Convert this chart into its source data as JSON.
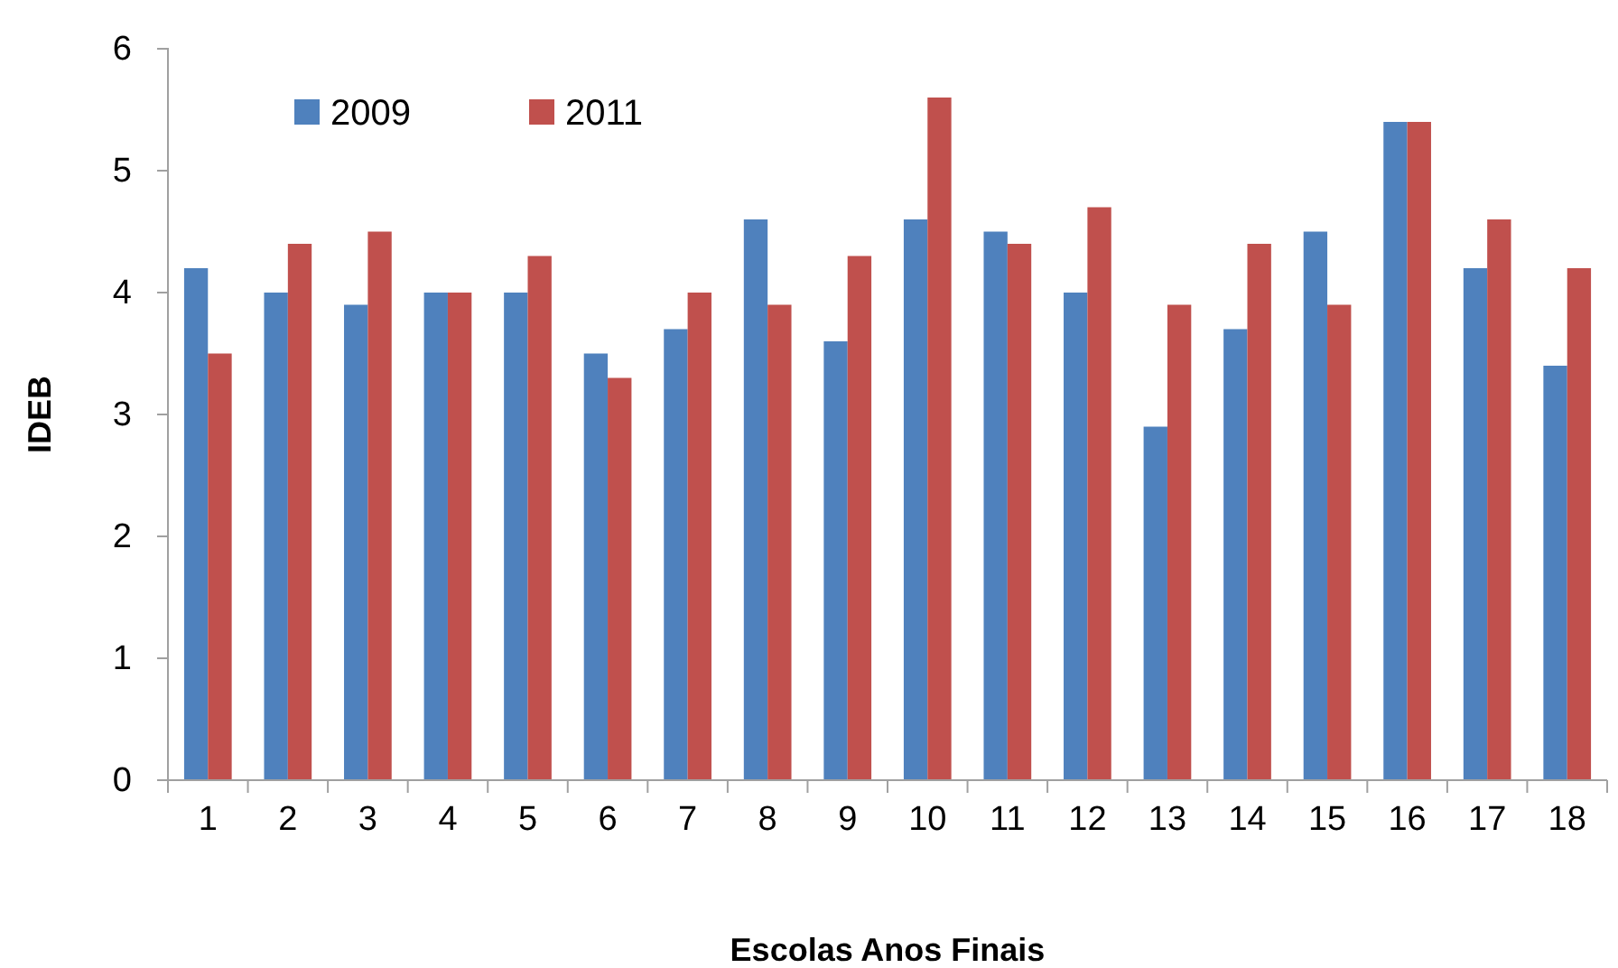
{
  "chart_data": {
    "type": "bar",
    "xlabel": "Escolas Anos Finais",
    "ylabel": "IDEB",
    "categories": [
      "1",
      "2",
      "3",
      "4",
      "5",
      "6",
      "7",
      "8",
      "9",
      "10",
      "11",
      "12",
      "13",
      "14",
      "15",
      "16",
      "17",
      "18"
    ],
    "series": [
      {
        "name": "2009",
        "color": "#4f81bd",
        "values": [
          4.2,
          4.0,
          3.9,
          4.0,
          4.0,
          3.5,
          3.7,
          4.6,
          3.6,
          4.6,
          4.5,
          4.0,
          2.9,
          3.7,
          4.5,
          5.4,
          4.2,
          3.4
        ]
      },
      {
        "name": "2011",
        "color": "#c0504d",
        "values": [
          3.5,
          4.4,
          4.5,
          4.0,
          4.3,
          3.3,
          4.0,
          3.9,
          4.3,
          5.6,
          4.4,
          4.7,
          3.9,
          4.4,
          3.9,
          5.4,
          4.6,
          4.2
        ]
      }
    ],
    "ylim": [
      0,
      6
    ],
    "yticks": [
      0,
      1,
      2,
      3,
      4,
      5,
      6
    ],
    "legend": "top left"
  }
}
